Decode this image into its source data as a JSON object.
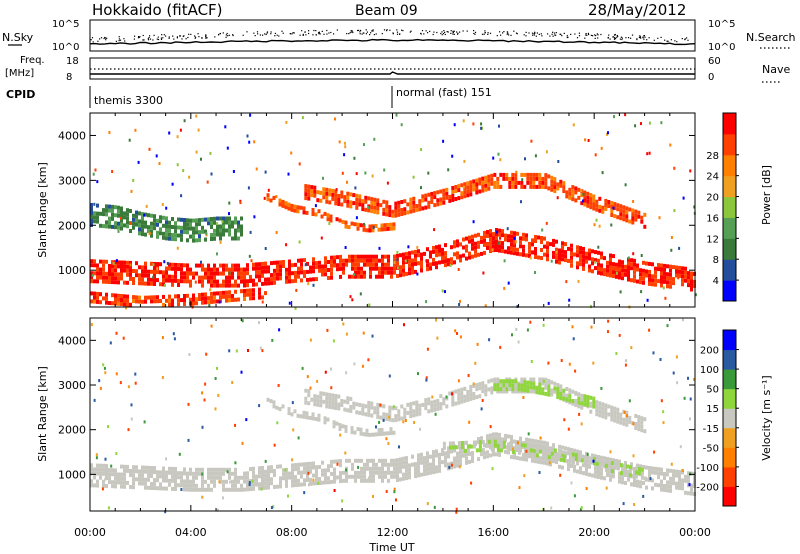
{
  "header": {
    "station": "Hokkaido (fitACF)",
    "beam": "Beam 09",
    "date": "28/May/2012"
  },
  "strip_labels": {
    "nsky": "N.Sky",
    "freq_line1": "Freq.",
    "freq_line2": "[MHz]",
    "cpid": "CPID",
    "nsearch": "N.Search",
    "nave": "Nave",
    "ticks_noise_left": [
      "10^5",
      "10^0"
    ],
    "ticks_noise_right": [
      "10^5",
      "10^0"
    ],
    "ticks_freq_left": [
      "18",
      "8"
    ],
    "ticks_freq_right": [
      "60",
      "0"
    ]
  },
  "cpid_segments": [
    {
      "label": "themis 3300",
      "start_hour": 0
    },
    {
      "label": "normal (fast) 151",
      "start_hour": 12
    }
  ],
  "colors": {
    "power": [
      "#0000ff",
      "#234e9b",
      "#3a7a3a",
      "#55a055",
      "#8cc63c",
      "#f0a020",
      "#ff7f00",
      "#ff4000",
      "#ff0000"
    ],
    "velocity": [
      "#ff0000",
      "#ff4000",
      "#ff8000",
      "#f0a020",
      "#c8c8c0",
      "#8fd63c",
      "#3a9a3a",
      "#2a5aa0",
      "#0000ff"
    ],
    "ground_scatter": "#c8c8c0"
  },
  "chart_data": [
    {
      "type": "heatmap",
      "name": "power",
      "title": "",
      "xlabel": "",
      "ylabel": "Slant Range [km]",
      "xlim": [
        0,
        24
      ],
      "ylim": [
        180,
        4500
      ],
      "xticks": [
        "00:00",
        "04:00",
        "08:00",
        "12:00",
        "16:00",
        "20:00",
        "00:00"
      ],
      "yticks": [
        "1000",
        "2000",
        "3000",
        "4000"
      ],
      "colorbar": {
        "label": "Power [dB]",
        "ticks": [
          "4",
          "8",
          "12",
          "16",
          "20",
          "24",
          "28"
        ],
        "range": [
          0,
          30
        ]
      },
      "bands": [
        {
          "t": [
            0,
            2,
            4,
            6,
            8,
            10,
            12,
            14,
            16,
            18,
            20,
            22,
            24
          ],
          "r": [
            1050,
            1000,
            950,
            950,
            1050,
            1150,
            1150,
            1400,
            1750,
            1550,
            1250,
            1000,
            850
          ],
          "width": 500,
          "value": 27
        },
        {
          "t": [
            7,
            8,
            9,
            10,
            11,
            12
          ],
          "r": [
            2700,
            2450,
            2350,
            2100,
            2000,
            2050
          ],
          "width": 150,
          "value": 24
        },
        {
          "t": [
            8.5,
            10,
            12,
            14,
            16,
            18,
            20,
            22
          ],
          "r": [
            2800,
            2650,
            2400,
            2700,
            3050,
            3050,
            2550,
            2150
          ],
          "width": 300,
          "value": 25
        },
        {
          "t": [
            0,
            1,
            2,
            3,
            4,
            5,
            6
          ],
          "r": [
            2300,
            2250,
            2100,
            2000,
            1950,
            2000,
            2000
          ],
          "width": 500,
          "value": 9
        },
        {
          "t": [
            0,
            2,
            4,
            6,
            7
          ],
          "r": [
            450,
            350,
            400,
            500,
            550
          ],
          "width": 200,
          "value": 26
        }
      ]
    },
    {
      "type": "heatmap",
      "name": "velocity",
      "title": "",
      "xlabel": "Time UT",
      "ylabel": "Slant Range [km]",
      "xlim": [
        0,
        24
      ],
      "ylim": [
        180,
        4500
      ],
      "xticks": [
        "00:00",
        "04:00",
        "08:00",
        "12:00",
        "16:00",
        "20:00",
        "00:00"
      ],
      "yticks": [
        "1000",
        "2000",
        "3000",
        "4000"
      ],
      "colorbar": {
        "label": "Velocity [m s⁻¹]",
        "ticks": [
          "200",
          "100",
          "50",
          "15",
          "-15",
          "-50",
          "-100",
          "-200"
        ],
        "range": [
          -250,
          250
        ]
      },
      "bands": [
        {
          "t": [
            0,
            2,
            4,
            6,
            8,
            10,
            12,
            14,
            16,
            18,
            20,
            22,
            24
          ],
          "r": [
            1050,
            1000,
            950,
            950,
            1050,
            1150,
            1150,
            1400,
            1750,
            1550,
            1250,
            1000,
            850
          ],
          "width": 500,
          "value": 0
        },
        {
          "t": [
            7,
            8,
            9,
            10,
            11,
            12
          ],
          "r": [
            2700,
            2450,
            2350,
            2100,
            2000,
            2050
          ],
          "width": 150,
          "value": 0
        },
        {
          "t": [
            8.5,
            10,
            12,
            14,
            16,
            18,
            20,
            22
          ],
          "r": [
            2800,
            2650,
            2400,
            2700,
            3050,
            3050,
            2550,
            2150
          ],
          "width": 300,
          "value": 0
        },
        {
          "t": [
            16,
            17,
            18,
            19,
            20
          ],
          "r": [
            3050,
            3050,
            2950,
            2800,
            2650
          ],
          "width": 200,
          "value": 35
        },
        {
          "t": [
            14,
            16,
            18,
            20,
            22
          ],
          "r": [
            1650,
            1700,
            1550,
            1300,
            1050
          ],
          "width": 200,
          "value": 25
        }
      ]
    }
  ]
}
